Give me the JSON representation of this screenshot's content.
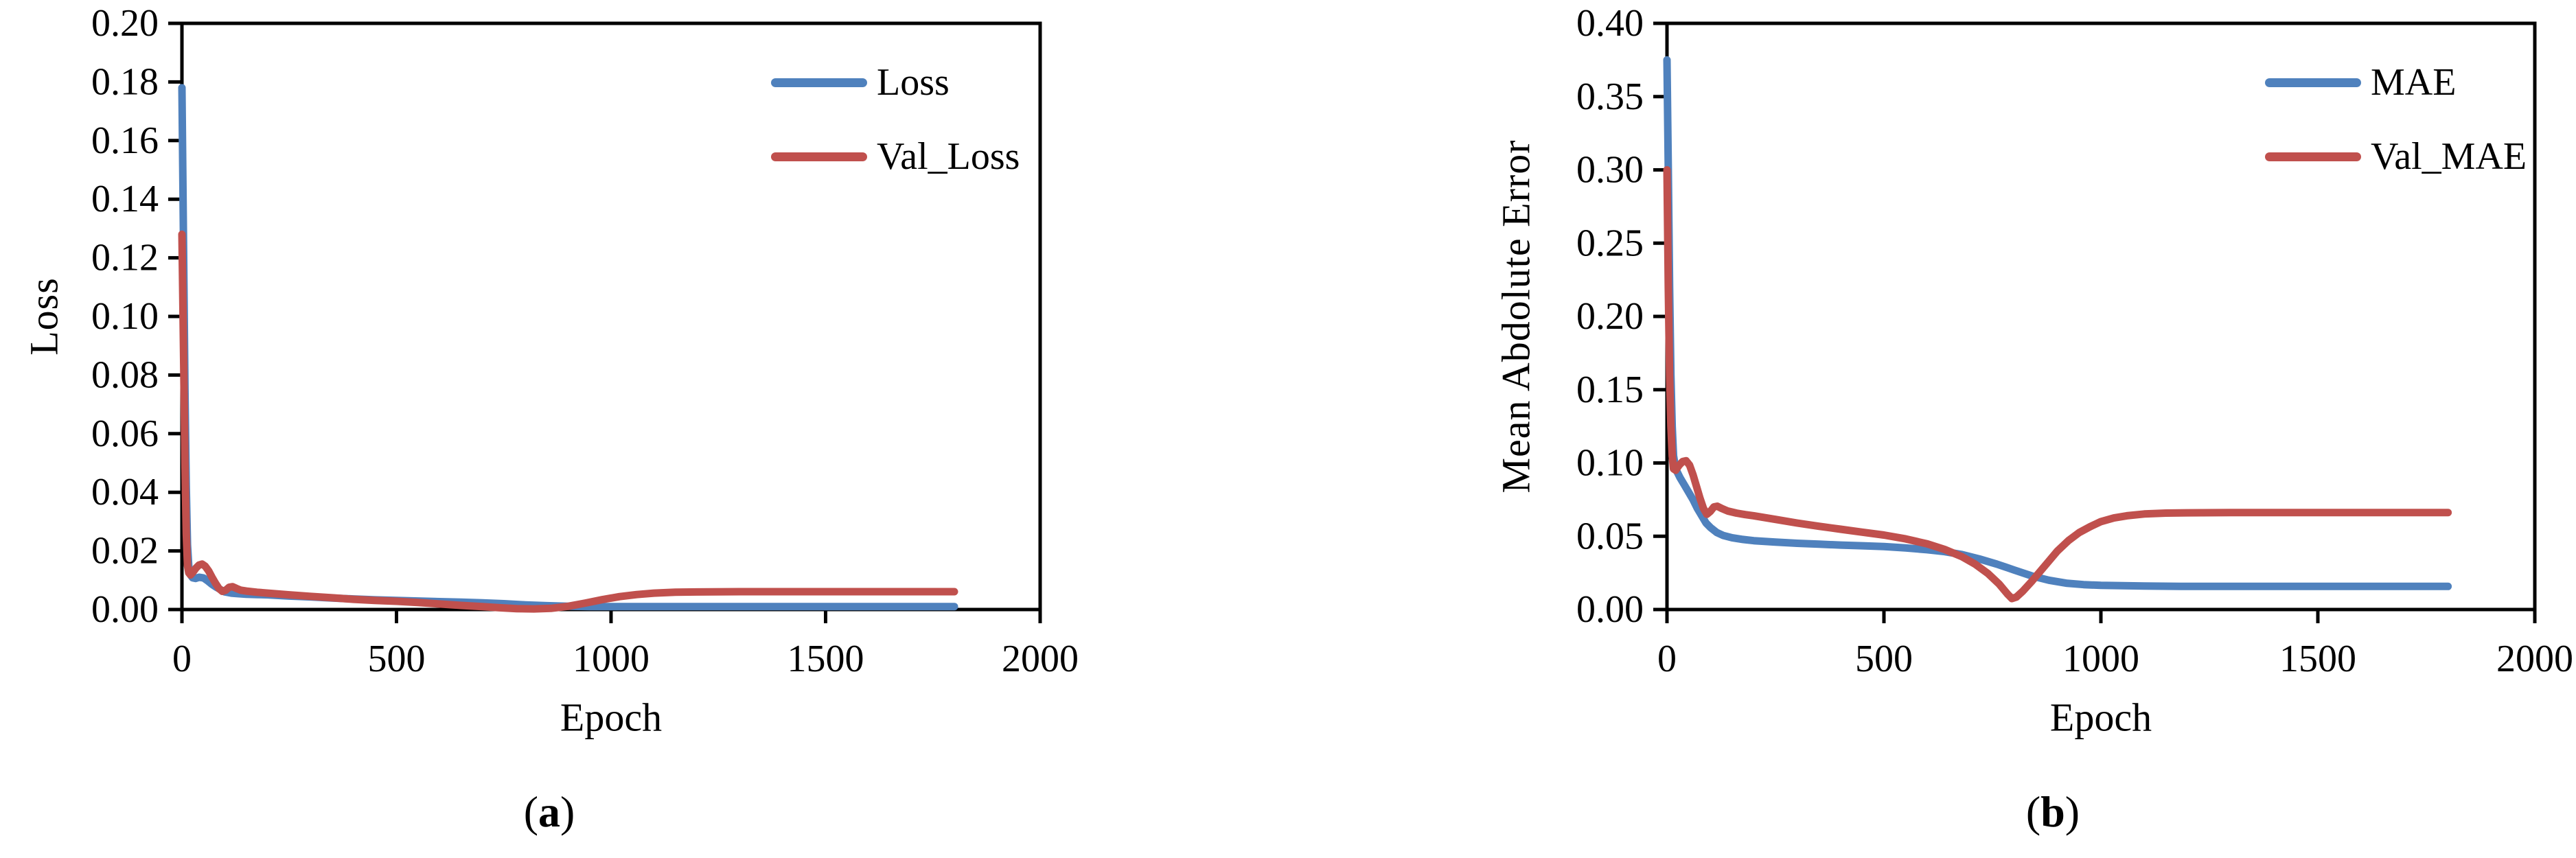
{
  "figure_background": "#ffffff",
  "axis_color": "#000000",
  "chart_data": [
    {
      "type": "line",
      "title": "",
      "xlabel": "Epoch",
      "ylabel": "Loss",
      "caption": {
        "open": "(",
        "letter": "a",
        "close": ")"
      },
      "xlim": [
        0,
        2000
      ],
      "ylim": [
        0.0,
        0.2
      ],
      "xticks": [
        0,
        500,
        1000,
        1500,
        2000
      ],
      "yticks": [
        0.0,
        0.02,
        0.04,
        0.06,
        0.08,
        0.1,
        0.12,
        0.14,
        0.16,
        0.18,
        0.2
      ],
      "ytick_decimals": 2,
      "grid": false,
      "legend_position": "upper-right-inside",
      "series": [
        {
          "name": "Loss",
          "color": "#4F81BD",
          "points": [
            [
              0,
              0.178
            ],
            [
              4,
              0.12
            ],
            [
              7,
              0.075
            ],
            [
              10,
              0.042
            ],
            [
              13,
              0.022
            ],
            [
              16,
              0.0145
            ],
            [
              20,
              0.0118
            ],
            [
              25,
              0.0108
            ],
            [
              32,
              0.0106
            ],
            [
              40,
              0.011
            ],
            [
              50,
              0.0108
            ],
            [
              60,
              0.0098
            ],
            [
              70,
              0.0086
            ],
            [
              80,
              0.0076
            ],
            [
              90,
              0.0068
            ],
            [
              100,
              0.006
            ],
            [
              115,
              0.0056
            ],
            [
              130,
              0.0054
            ],
            [
              150,
              0.0052
            ],
            [
              175,
              0.0051
            ],
            [
              200,
              0.005
            ],
            [
              250,
              0.0046
            ],
            [
              300,
              0.0043
            ],
            [
              350,
              0.0039
            ],
            [
              400,
              0.0036
            ],
            [
              450,
              0.0033
            ],
            [
              500,
              0.0031
            ],
            [
              550,
              0.0029
            ],
            [
              600,
              0.0027
            ],
            [
              650,
              0.0025
            ],
            [
              700,
              0.0023
            ],
            [
              750,
              0.002
            ],
            [
              800,
              0.0016
            ],
            [
              850,
              0.0013
            ],
            [
              900,
              0.0011
            ],
            [
              950,
              0.001
            ],
            [
              1000,
              0.001
            ],
            [
              1100,
              0.001
            ],
            [
              1200,
              0.001
            ],
            [
              1300,
              0.001
            ],
            [
              1400,
              0.001
            ],
            [
              1500,
              0.001
            ],
            [
              1600,
              0.001
            ],
            [
              1700,
              0.001
            ],
            [
              1800,
              0.001
            ]
          ]
        },
        {
          "name": "Val_Loss",
          "color": "#C0504D",
          "points": [
            [
              0,
              0.128
            ],
            [
              4,
              0.085
            ],
            [
              7,
              0.05
            ],
            [
              10,
              0.026
            ],
            [
              13,
              0.015
            ],
            [
              16,
              0.0125
            ],
            [
              20,
              0.0118
            ],
            [
              26,
              0.0128
            ],
            [
              33,
              0.0142
            ],
            [
              40,
              0.0152
            ],
            [
              47,
              0.0155
            ],
            [
              54,
              0.0148
            ],
            [
              62,
              0.0132
            ],
            [
              70,
              0.011
            ],
            [
              78,
              0.009
            ],
            [
              86,
              0.0072
            ],
            [
              94,
              0.0062
            ],
            [
              102,
              0.0066
            ],
            [
              110,
              0.0076
            ],
            [
              118,
              0.0078
            ],
            [
              127,
              0.0072
            ],
            [
              137,
              0.0066
            ],
            [
              150,
              0.0063
            ],
            [
              175,
              0.0059
            ],
            [
              200,
              0.0056
            ],
            [
              250,
              0.005
            ],
            [
              300,
              0.0045
            ],
            [
              350,
              0.004
            ],
            [
              400,
              0.0035
            ],
            [
              450,
              0.0031
            ],
            [
              500,
              0.0028
            ],
            [
              550,
              0.0024
            ],
            [
              600,
              0.0019
            ],
            [
              650,
              0.0014
            ],
            [
              700,
              0.001
            ],
            [
              740,
              0.0006
            ],
            [
              780,
              0.0003
            ],
            [
              820,
              0.0002
            ],
            [
              860,
              0.0004
            ],
            [
              900,
              0.0011
            ],
            [
              940,
              0.0022
            ],
            [
              980,
              0.0034
            ],
            [
              1020,
              0.0044
            ],
            [
              1060,
              0.0051
            ],
            [
              1100,
              0.0056
            ],
            [
              1150,
              0.0059
            ],
            [
              1200,
              0.006
            ],
            [
              1300,
              0.0061
            ],
            [
              1400,
              0.0061
            ],
            [
              1500,
              0.0061
            ],
            [
              1600,
              0.0061
            ],
            [
              1700,
              0.0061
            ],
            [
              1800,
              0.0061
            ]
          ]
        }
      ]
    },
    {
      "type": "line",
      "title": "",
      "xlabel": "Epoch",
      "ylabel": "Mean Abdolute Error",
      "caption": {
        "open": "(",
        "letter": "b",
        "close": ")"
      },
      "xlim": [
        0,
        2000
      ],
      "ylim": [
        0.0,
        0.4
      ],
      "xticks": [
        0,
        500,
        1000,
        1500,
        2000
      ],
      "yticks": [
        0.0,
        0.05,
        0.1,
        0.15,
        0.2,
        0.25,
        0.3,
        0.35,
        0.4
      ],
      "ytick_decimals": 2,
      "grid": false,
      "legend_position": "upper-right-inside",
      "series": [
        {
          "name": "MAE",
          "color": "#4F81BD",
          "points": [
            [
              0,
              0.375
            ],
            [
              3,
              0.3
            ],
            [
              6,
              0.22
            ],
            [
              9,
              0.16
            ],
            [
              12,
              0.125
            ],
            [
              15,
              0.105
            ],
            [
              20,
              0.096
            ],
            [
              30,
              0.09
            ],
            [
              40,
              0.085
            ],
            [
              50,
              0.08
            ],
            [
              60,
              0.075
            ],
            [
              70,
              0.069
            ],
            [
              80,
              0.064
            ],
            [
              90,
              0.059
            ],
            [
              100,
              0.056
            ],
            [
              115,
              0.0525
            ],
            [
              130,
              0.0505
            ],
            [
              150,
              0.049
            ],
            [
              175,
              0.0478
            ],
            [
              200,
              0.047
            ],
            [
              250,
              0.046
            ],
            [
              300,
              0.0452
            ],
            [
              350,
              0.0446
            ],
            [
              400,
              0.044
            ],
            [
              450,
              0.0435
            ],
            [
              500,
              0.043
            ],
            [
              550,
              0.042
            ],
            [
              600,
              0.0408
            ],
            [
              640,
              0.0395
            ],
            [
              680,
              0.0375
            ],
            [
              720,
              0.0345
            ],
            [
              760,
              0.031
            ],
            [
              800,
              0.027
            ],
            [
              840,
              0.023
            ],
            [
              880,
              0.02
            ],
            [
              920,
              0.018
            ],
            [
              960,
              0.017
            ],
            [
              1000,
              0.0165
            ],
            [
              1100,
              0.016
            ],
            [
              1200,
              0.0158
            ],
            [
              1300,
              0.0158
            ],
            [
              1400,
              0.0158
            ],
            [
              1500,
              0.0158
            ],
            [
              1600,
              0.0158
            ],
            [
              1700,
              0.0158
            ],
            [
              1800,
              0.0158
            ]
          ]
        },
        {
          "name": "Val_MAE",
          "color": "#C0504D",
          "points": [
            [
              0,
              0.3
            ],
            [
              3,
              0.22
            ],
            [
              6,
              0.16
            ],
            [
              9,
              0.125
            ],
            [
              12,
              0.105
            ],
            [
              15,
              0.096
            ],
            [
              20,
              0.095
            ],
            [
              28,
              0.0985
            ],
            [
              36,
              0.101
            ],
            [
              44,
              0.1015
            ],
            [
              52,
              0.0985
            ],
            [
              60,
              0.092
            ],
            [
              68,
              0.084
            ],
            [
              76,
              0.076
            ],
            [
              84,
              0.069
            ],
            [
              92,
              0.065
            ],
            [
              100,
              0.067
            ],
            [
              108,
              0.07
            ],
            [
              116,
              0.0705
            ],
            [
              126,
              0.069
            ],
            [
              140,
              0.0672
            ],
            [
              160,
              0.0658
            ],
            [
              180,
              0.0648
            ],
            [
              200,
              0.064
            ],
            [
              250,
              0.0615
            ],
            [
              300,
              0.059
            ],
            [
              350,
              0.0568
            ],
            [
              400,
              0.0548
            ],
            [
              450,
              0.0528
            ],
            [
              500,
              0.0508
            ],
            [
              550,
              0.0482
            ],
            [
              600,
              0.0448
            ],
            [
              640,
              0.041
            ],
            [
              680,
              0.036
            ],
            [
              710,
              0.031
            ],
            [
              740,
              0.0245
            ],
            [
              765,
              0.0175
            ],
            [
              785,
              0.0105
            ],
            [
              795,
              0.0075
            ],
            [
              805,
              0.0085
            ],
            [
              820,
              0.0125
            ],
            [
              840,
              0.019
            ],
            [
              860,
              0.026
            ],
            [
              880,
              0.033
            ],
            [
              900,
              0.04
            ],
            [
              925,
              0.047
            ],
            [
              950,
              0.0525
            ],
            [
              975,
              0.0565
            ],
            [
              1000,
              0.06
            ],
            [
              1030,
              0.0625
            ],
            [
              1060,
              0.064
            ],
            [
              1100,
              0.0652
            ],
            [
              1150,
              0.0658
            ],
            [
              1200,
              0.066
            ],
            [
              1300,
              0.0662
            ],
            [
              1400,
              0.0662
            ],
            [
              1500,
              0.0662
            ],
            [
              1600,
              0.0662
            ],
            [
              1700,
              0.0662
            ],
            [
              1800,
              0.0662
            ]
          ]
        }
      ]
    }
  ]
}
